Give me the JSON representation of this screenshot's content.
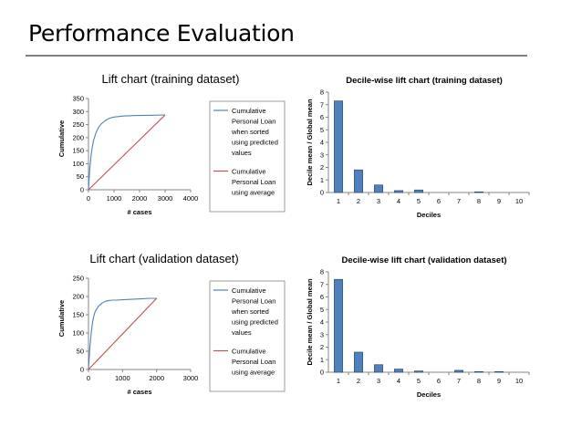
{
  "slide": {
    "title": "Performance Evaluation"
  },
  "chart_data": [
    {
      "type": "line",
      "title": "Lift chart (training dataset)",
      "xlabel": "# cases",
      "ylabel": "Cumulative",
      "xlim": [
        0,
        4000
      ],
      "ylim": [
        0,
        350
      ],
      "xticks": [
        "0",
        "1000",
        "2000",
        "3000",
        "4000"
      ],
      "yticks": [
        "0",
        "50",
        "100",
        "150",
        "200",
        "250",
        "300",
        "350"
      ],
      "grid": false,
      "legend": "right",
      "series": [
        {
          "name": "Cumulative Personal Loan when sorted using predicted values",
          "color": "#4f81bd",
          "points": [
            [
              0,
              0
            ],
            [
              50,
              80
            ],
            [
              100,
              130
            ],
            [
              150,
              165
            ],
            [
              200,
              190
            ],
            [
              300,
              220
            ],
            [
              400,
              240
            ],
            [
              500,
              253
            ],
            [
              600,
              261
            ],
            [
              700,
              268
            ],
            [
              800,
              273
            ],
            [
              900,
              277
            ],
            [
              1000,
              279
            ],
            [
              1200,
              281
            ],
            [
              1400,
              283
            ],
            [
              1600,
              284
            ],
            [
              1800,
              285
            ],
            [
              2000,
              285
            ],
            [
              2500,
              286
            ],
            [
              3000,
              287
            ]
          ]
        },
        {
          "name": "Cumulative Personal Loan using average",
          "color": "#c0504d",
          "points": [
            [
              0,
              0
            ],
            [
              3000,
              287
            ]
          ]
        }
      ]
    },
    {
      "type": "bar",
      "title": "Decile-wise lift chart (training dataset)",
      "xlabel": "Deciles",
      "ylabel": "Decile mean / Global mean",
      "ylim": [
        0,
        8
      ],
      "yticks": [
        "0",
        "1",
        "2",
        "3",
        "4",
        "5",
        "6",
        "7",
        "8"
      ],
      "categories": [
        "1",
        "2",
        "3",
        "4",
        "5",
        "6",
        "7",
        "8",
        "9",
        "10"
      ],
      "values": [
        7.3,
        1.8,
        0.6,
        0.15,
        0.2,
        0,
        0,
        0.05,
        0,
        0
      ],
      "color": "#4f81bd",
      "grid": false
    },
    {
      "type": "line",
      "title": "Lift chart (validation dataset)",
      "xlabel": "# cases",
      "ylabel": "Cumulative",
      "xlim": [
        0,
        3000
      ],
      "ylim": [
        0,
        250
      ],
      "xticks": [
        "0",
        "1000",
        "2000",
        "3000"
      ],
      "yticks": [
        "0",
        "50",
        "100",
        "150",
        "200",
        "250"
      ],
      "grid": false,
      "legend": "right",
      "series": [
        {
          "name": "Cumulative Personal Loan when sorted using predicted values",
          "color": "#4f81bd",
          "points": [
            [
              0,
              0
            ],
            [
              40,
              60
            ],
            [
              80,
              100
            ],
            [
              120,
              130
            ],
            [
              160,
              148
            ],
            [
              200,
              160
            ],
            [
              300,
              174
            ],
            [
              400,
              182
            ],
            [
              500,
              187
            ],
            [
              600,
              189
            ],
            [
              700,
              190
            ],
            [
              800,
              190
            ],
            [
              1000,
              191
            ],
            [
              1200,
              192
            ],
            [
              1400,
              193
            ],
            [
              1600,
              194
            ],
            [
              1800,
              195
            ],
            [
              2000,
              195
            ]
          ]
        },
        {
          "name": "Cumulative Personal Loan using average",
          "color": "#c0504d",
          "points": [
            [
              0,
              0
            ],
            [
              2000,
              195
            ]
          ]
        }
      ]
    },
    {
      "type": "bar",
      "title": "Decile-wise lift chart (validation dataset)",
      "xlabel": "Deciles",
      "ylabel": "Decile mean / Global mean",
      "ylim": [
        0,
        8
      ],
      "yticks": [
        "0",
        "1",
        "2",
        "3",
        "4",
        "5",
        "6",
        "7",
        "8"
      ],
      "categories": [
        "1",
        "2",
        "3",
        "4",
        "5",
        "6",
        "7",
        "8",
        "9",
        "10"
      ],
      "values": [
        7.4,
        1.6,
        0.6,
        0.25,
        0.1,
        0,
        0.15,
        0.05,
        0.05,
        0
      ],
      "color": "#4f81bd",
      "grid": false
    }
  ]
}
